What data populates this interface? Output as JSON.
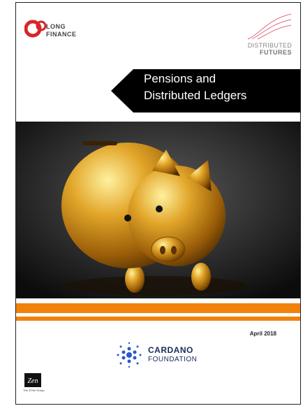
{
  "header": {
    "left_logo": {
      "line1": "LONG",
      "line2": "FINANCE"
    },
    "right_logo": {
      "line1": "DISTRIBUTED",
      "line2": "FUTURES"
    }
  },
  "title": {
    "line1": "Pensions and",
    "line2": "Distributed Ledgers"
  },
  "date": "April 2018",
  "sponsor": {
    "line1": "CARDANO",
    "line2": "FOUNDATION"
  },
  "footer_logo": {
    "mark": "Zen",
    "caption": "The Z/Yen Group"
  }
}
